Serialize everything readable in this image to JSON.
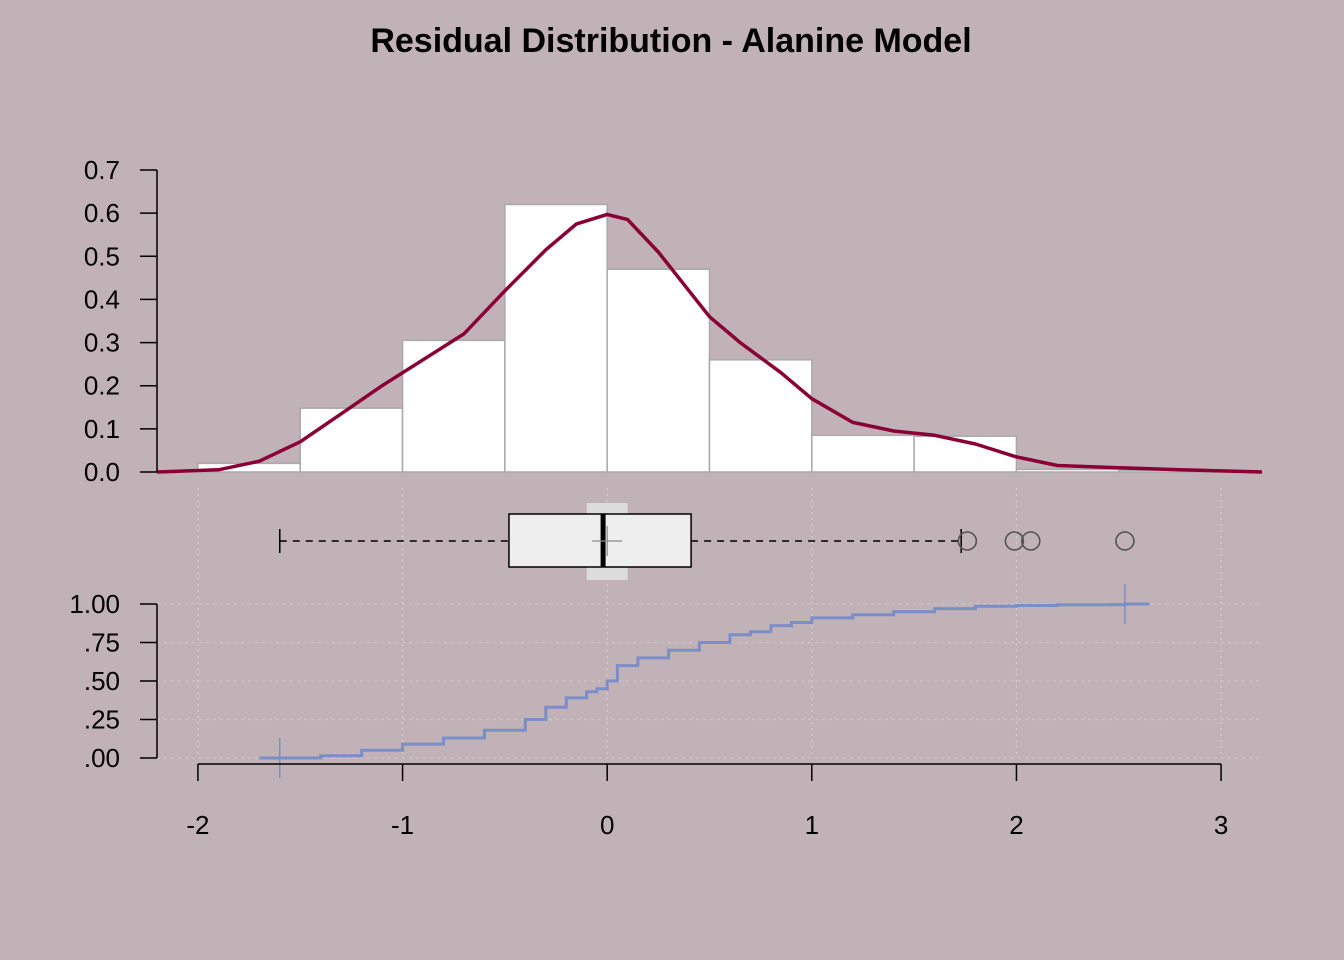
{
  "chart_data": [
    {
      "type": "bar",
      "panel": "histogram",
      "title": "Residual Distribution - Alanine Model",
      "xlabel": "",
      "ylabel": "",
      "ylim": [
        0,
        0.7
      ],
      "y_ticks": [
        "0.0",
        "0.1",
        "0.2",
        "0.3",
        "0.4",
        "0.5",
        "0.6",
        "0.7"
      ],
      "bins": [
        {
          "from": -2.0,
          "to": -1.5,
          "density": 0.02
        },
        {
          "from": -1.5,
          "to": -1.0,
          "density": 0.148
        },
        {
          "from": -1.0,
          "to": -0.5,
          "density": 0.305
        },
        {
          "from": -0.5,
          "to": 0.0,
          "density": 0.62
        },
        {
          "from": 0.0,
          "to": 0.5,
          "density": 0.47
        },
        {
          "from": 0.5,
          "to": 1.0,
          "density": 0.26
        },
        {
          "from": 1.0,
          "to": 1.5,
          "density": 0.085
        },
        {
          "from": 1.5,
          "to": 2.0,
          "density": 0.083
        },
        {
          "from": 2.0,
          "to": 2.5,
          "density": 0.006
        },
        {
          "from": 2.5,
          "to": 3.0,
          "density": 0.004
        }
      ],
      "density_curve": {
        "color": "#8b0034",
        "x": [
          -2.2,
          -1.9,
          -1.7,
          -1.5,
          -1.3,
          -1.1,
          -0.9,
          -0.7,
          -0.5,
          -0.3,
          -0.15,
          0.0,
          0.1,
          0.25,
          0.4,
          0.5,
          0.65,
          0.85,
          1.0,
          1.2,
          1.4,
          1.6,
          1.8,
          2.0,
          2.2,
          2.5,
          2.8,
          3.2
        ],
        "y": [
          0.0,
          0.005,
          0.025,
          0.07,
          0.135,
          0.2,
          0.26,
          0.32,
          0.42,
          0.515,
          0.575,
          0.597,
          0.585,
          0.51,
          0.42,
          0.36,
          0.3,
          0.23,
          0.17,
          0.115,
          0.095,
          0.085,
          0.065,
          0.035,
          0.015,
          0.01,
          0.005,
          0.0
        ]
      }
    },
    {
      "type": "boxplot",
      "panel": "boxplot",
      "whisker_low": -1.6,
      "q1": -0.48,
      "median": -0.02,
      "mean": 0.0,
      "q3": 0.41,
      "whisker_high": 1.73,
      "outliers": [
        1.76,
        1.99,
        2.07,
        2.53
      ],
      "mean_ci": [
        -0.1,
        0.1
      ]
    },
    {
      "type": "line",
      "panel": "ecdf",
      "color": "#7b8ec8",
      "ylim": [
        0,
        1
      ],
      "y_ticks": [
        ".00",
        ".25",
        ".50",
        ".75",
        "1.00"
      ],
      "x": [
        -1.7,
        -1.6,
        -1.4,
        -1.2,
        -1.0,
        -0.8,
        -0.6,
        -0.4,
        -0.3,
        -0.2,
        -0.1,
        -0.05,
        0.0,
        0.05,
        0.15,
        0.3,
        0.45,
        0.6,
        0.7,
        0.8,
        0.9,
        1.0,
        1.2,
        1.4,
        1.6,
        1.8,
        2.0,
        2.2,
        2.53,
        2.65
      ],
      "y": [
        0.0,
        0.0,
        0.015,
        0.05,
        0.09,
        0.13,
        0.18,
        0.25,
        0.33,
        0.39,
        0.43,
        0.45,
        0.5,
        0.6,
        0.65,
        0.7,
        0.75,
        0.8,
        0.82,
        0.86,
        0.88,
        0.91,
        0.93,
        0.95,
        0.97,
        0.985,
        0.99,
        0.995,
        1.0,
        1.0
      ],
      "markers": [
        -1.6,
        2.53
      ]
    }
  ],
  "x_axis": {
    "ticks": [
      "-2",
      "-1",
      "0",
      "1",
      "2",
      "3"
    ],
    "xlim": [
      -2.2,
      3.2
    ]
  },
  "colors": {
    "background": "#c1b2b7",
    "bar_fill": "#ffffff",
    "bar_stroke": "#a9a9a9",
    "density": "#8b0034",
    "ecdf": "#7b8ec8",
    "box_fill": "#eeeeee",
    "ci_band": "#dcdcdc"
  }
}
